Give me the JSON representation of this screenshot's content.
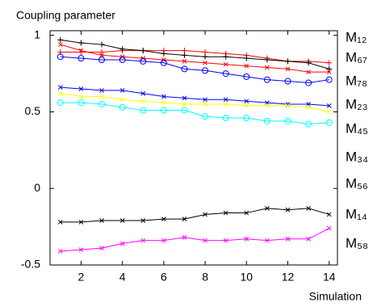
{
  "chart_data": {
    "type": "line",
    "title": "Coupling parameter",
    "x_label": "Simulation",
    "x": [
      1,
      2,
      3,
      4,
      5,
      6,
      7,
      8,
      9,
      10,
      11,
      12,
      13,
      14
    ],
    "xlim": [
      0.5,
      14.4
    ],
    "ylim": [
      -0.5,
      1.03
    ],
    "xticks": [
      2,
      4,
      6,
      8,
      10,
      12,
      14
    ],
    "yticks": [
      -0.5,
      0,
      0.5,
      1
    ],
    "series": [
      {
        "name": "M₁₂",
        "color": "#ff0000",
        "marker": "+",
        "values": [
          0.89,
          0.89,
          0.89,
          0.9,
          0.9,
          0.9,
          0.9,
          0.89,
          0.88,
          0.87,
          0.85,
          0.83,
          0.83,
          0.82
        ]
      },
      {
        "name": "M₆₇",
        "color": "#000000",
        "marker": "+",
        "values": [
          0.97,
          0.95,
          0.94,
          0.91,
          0.9,
          0.88,
          0.87,
          0.86,
          0.86,
          0.85,
          0.84,
          0.83,
          0.82,
          0.78
        ]
      },
      {
        "name": "M₇₈",
        "color": "#ff0000",
        "marker": "x",
        "values": [
          0.94,
          0.9,
          0.87,
          0.86,
          0.85,
          0.84,
          0.83,
          0.82,
          0.81,
          0.8,
          0.79,
          0.78,
          0.76,
          0.76
        ]
      },
      {
        "name": "M₂₃",
        "color": "#0000ff",
        "marker": "o",
        "values": [
          0.86,
          0.85,
          0.84,
          0.84,
          0.83,
          0.82,
          0.78,
          0.77,
          0.75,
          0.73,
          0.71,
          0.7,
          0.69,
          0.71
        ]
      },
      {
        "name": "M₄₅",
        "color": "#0000ff",
        "marker": "x",
        "values": [
          0.66,
          0.65,
          0.64,
          0.64,
          0.62,
          0.6,
          0.59,
          0.58,
          0.58,
          0.57,
          0.56,
          0.55,
          0.55,
          0.54
        ]
      },
      {
        "name": "M₃₄",
        "color": "#ffff00",
        "marker": "x",
        "values": [
          0.62,
          0.6,
          0.6,
          0.58,
          0.57,
          0.56,
          0.55,
          0.55,
          0.55,
          0.54,
          0.54,
          0.54,
          0.53,
          0.5
        ]
      },
      {
        "name": "M₅₆",
        "color": "#00ffff",
        "marker": "o",
        "values": [
          0.56,
          0.56,
          0.55,
          0.53,
          0.51,
          0.51,
          0.51,
          0.47,
          0.46,
          0.46,
          0.44,
          0.44,
          0.42,
          0.43
        ]
      },
      {
        "name": "M₁₄",
        "color": "#000000",
        "marker": "x",
        "values": [
          -0.22,
          -0.22,
          -0.21,
          -0.21,
          -0.21,
          -0.2,
          -0.2,
          -0.17,
          -0.16,
          -0.16,
          -0.13,
          -0.14,
          -0.13,
          -0.17
        ]
      },
      {
        "name": "M₅₈",
        "color": "#ff00ff",
        "marker": "x",
        "values": [
          -0.41,
          -0.4,
          -0.39,
          -0.36,
          -0.34,
          -0.34,
          -0.32,
          -0.34,
          -0.34,
          -0.33,
          -0.34,
          -0.33,
          -0.33,
          -0.26
        ]
      }
    ]
  }
}
